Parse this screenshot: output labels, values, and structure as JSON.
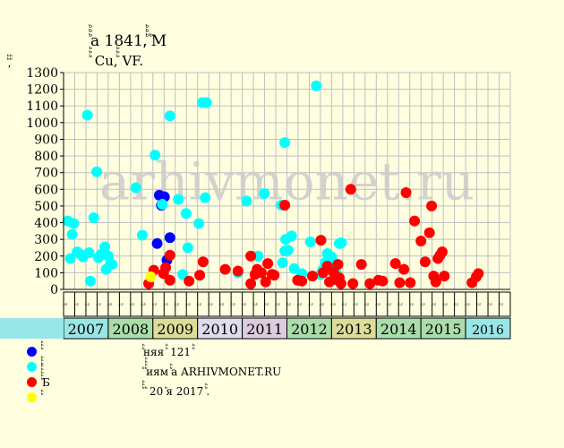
{
  "chart_data": {
    "type": "scatter",
    "title": "ꙺꙺꙺа 1841,ꙺꙺꙺ ꙺМ",
    "subtitle": "ꙺꙺꙺ Cu,ꙺꙺꙺ VF.",
    "ylabel": "ꙺꙺ,ꙺꙺ",
    "ylim": [
      0,
      1300
    ],
    "yticks": [
      0,
      100,
      200,
      300,
      400,
      500,
      600,
      700,
      800,
      900,
      1000,
      1100,
      1200,
      1300
    ],
    "grid": true,
    "watermark": "arhivmonet.ru",
    "x_range": [
      2006.0,
      2016.5
    ],
    "quarter_labels": [
      "ꙺꙺ",
      "ꙺꙺ",
      "ꙺꙺ",
      "ꙺꙺ"
    ],
    "years": [
      "2007",
      "2008",
      "2009",
      "2010",
      "2011",
      "2012",
      "2013",
      "2014",
      "2015",
      "2016"
    ],
    "year_colors": [
      "#99e6e6",
      "#aaddaa",
      "#dddd99",
      "#ddddee",
      "#ddccdd",
      "#aaddaa",
      "#dddd99",
      "#aaddaa",
      "#aaddaa",
      "#99e6e6"
    ],
    "series": [
      {
        "name": "ꙺꙺꙺ",
        "color": "#0000ff",
        "points": [
          [
            2008.2,
            275
          ],
          [
            2008.25,
            565
          ],
          [
            2008.3,
            505
          ],
          [
            2008.37,
            555
          ],
          [
            2008.43,
            175
          ],
          [
            2008.5,
            310
          ]
        ]
      },
      {
        "name": "ꙺꙺꙺ",
        "color": "#00ffff",
        "points": [
          [
            2006.1,
            410
          ],
          [
            2006.16,
            185
          ],
          [
            2006.2,
            330
          ],
          [
            2006.24,
            395
          ],
          [
            2006.32,
            225
          ],
          [
            2006.4,
            210
          ],
          [
            2006.46,
            195
          ],
          [
            2006.56,
            1045
          ],
          [
            2006.6,
            220
          ],
          [
            2006.63,
            50
          ],
          [
            2006.71,
            430
          ],
          [
            2006.78,
            705
          ],
          [
            2006.82,
            190
          ],
          [
            2006.88,
            210
          ],
          [
            2006.97,
            255
          ],
          [
            2007.0,
            120
          ],
          [
            2007.05,
            200
          ],
          [
            2007.1,
            150
          ],
          [
            2007.14,
            150
          ],
          [
            2007.7,
            610
          ],
          [
            2007.85,
            325
          ],
          [
            2008.15,
            805
          ],
          [
            2008.32,
            510
          ],
          [
            2008.5,
            1040
          ],
          [
            2008.7,
            540
          ],
          [
            2008.8,
            90
          ],
          [
            2008.88,
            455
          ],
          [
            2008.92,
            250
          ],
          [
            2009.18,
            395
          ],
          [
            2009.26,
            1120
          ],
          [
            2009.33,
            550
          ],
          [
            2009.36,
            1120
          ],
          [
            2010.1,
            100
          ],
          [
            2010.3,
            530
          ],
          [
            2010.57,
            200
          ],
          [
            2010.72,
            575
          ],
          [
            2011.12,
            505
          ],
          [
            2011.15,
            160
          ],
          [
            2011.2,
            880
          ],
          [
            2011.2,
            230
          ],
          [
            2011.22,
            300
          ],
          [
            2011.28,
            235
          ],
          [
            2011.36,
            320
          ],
          [
            2011.42,
            125
          ],
          [
            2011.6,
            95
          ],
          [
            2011.8,
            285
          ],
          [
            2011.94,
            1220
          ],
          [
            2012.04,
            90
          ],
          [
            2012.1,
            120
          ],
          [
            2012.15,
            160
          ],
          [
            2012.2,
            215
          ],
          [
            2012.25,
            135
          ],
          [
            2012.3,
            195
          ],
          [
            2012.35,
            160
          ],
          [
            2012.4,
            100
          ],
          [
            2012.48,
            275
          ],
          [
            2012.53,
            280
          ]
        ]
      },
      {
        "name": "ꙺꙺꙺꙺꙺБ",
        "color": "#ff0000",
        "points": [
          [
            2008.0,
            35
          ],
          [
            2008.12,
            115
          ],
          [
            2008.35,
            95
          ],
          [
            2008.4,
            130
          ],
          [
            2008.5,
            55
          ],
          [
            2008.5,
            205
          ],
          [
            2008.95,
            50
          ],
          [
            2009.2,
            85
          ],
          [
            2009.28,
            165
          ],
          [
            2009.8,
            120
          ],
          [
            2010.1,
            110
          ],
          [
            2010.4,
            200
          ],
          [
            2010.4,
            35
          ],
          [
            2010.5,
            90
          ],
          [
            2010.55,
            120
          ],
          [
            2010.65,
            100
          ],
          [
            2010.75,
            45
          ],
          [
            2010.8,
            155
          ],
          [
            2010.9,
            90
          ],
          [
            2010.95,
            85
          ],
          [
            2011.2,
            505
          ],
          [
            2011.5,
            55
          ],
          [
            2011.6,
            50
          ],
          [
            2011.85,
            80
          ],
          [
            2012.05,
            295
          ],
          [
            2012.1,
            100
          ],
          [
            2012.2,
            140
          ],
          [
            2012.25,
            45
          ],
          [
            2012.35,
            100
          ],
          [
            2012.4,
            60
          ],
          [
            2012.45,
            150
          ],
          [
            2012.48,
            70
          ],
          [
            2012.52,
            35
          ],
          [
            2012.75,
            600
          ],
          [
            2012.8,
            35
          ],
          [
            2013.0,
            150
          ],
          [
            2013.2,
            35
          ],
          [
            2013.4,
            55
          ],
          [
            2013.5,
            50
          ],
          [
            2013.8,
            155
          ],
          [
            2013.9,
            40
          ],
          [
            2014.0,
            120
          ],
          [
            2014.05,
            580
          ],
          [
            2014.15,
            40
          ],
          [
            2014.25,
            410
          ],
          [
            2014.4,
            290
          ],
          [
            2014.5,
            165
          ],
          [
            2014.6,
            340
          ],
          [
            2014.65,
            500
          ],
          [
            2014.7,
            80
          ],
          [
            2014.75,
            45
          ],
          [
            2014.8,
            185
          ],
          [
            2014.85,
            205
          ],
          [
            2014.9,
            225
          ],
          [
            2014.95,
            80
          ],
          [
            2015.6,
            40
          ],
          [
            2015.7,
            75
          ],
          [
            2015.75,
            95
          ]
        ]
      },
      {
        "name": "ꙺꙺ",
        "color": "#ffff00",
        "points": [
          [
            2008.05,
            75
          ]
        ]
      }
    ],
    "notes": [
      "ꙺꙺняя ꙺꙺ 121 ꙺꙺ",
      "ꙺ ꙺꙺꙺꙺиям ꙺꙺа ARHIVMONET.RU",
      "ꙺꙺꙺ ꙺ 20 ꙺя 2017 ꙺꙺ."
    ]
  }
}
